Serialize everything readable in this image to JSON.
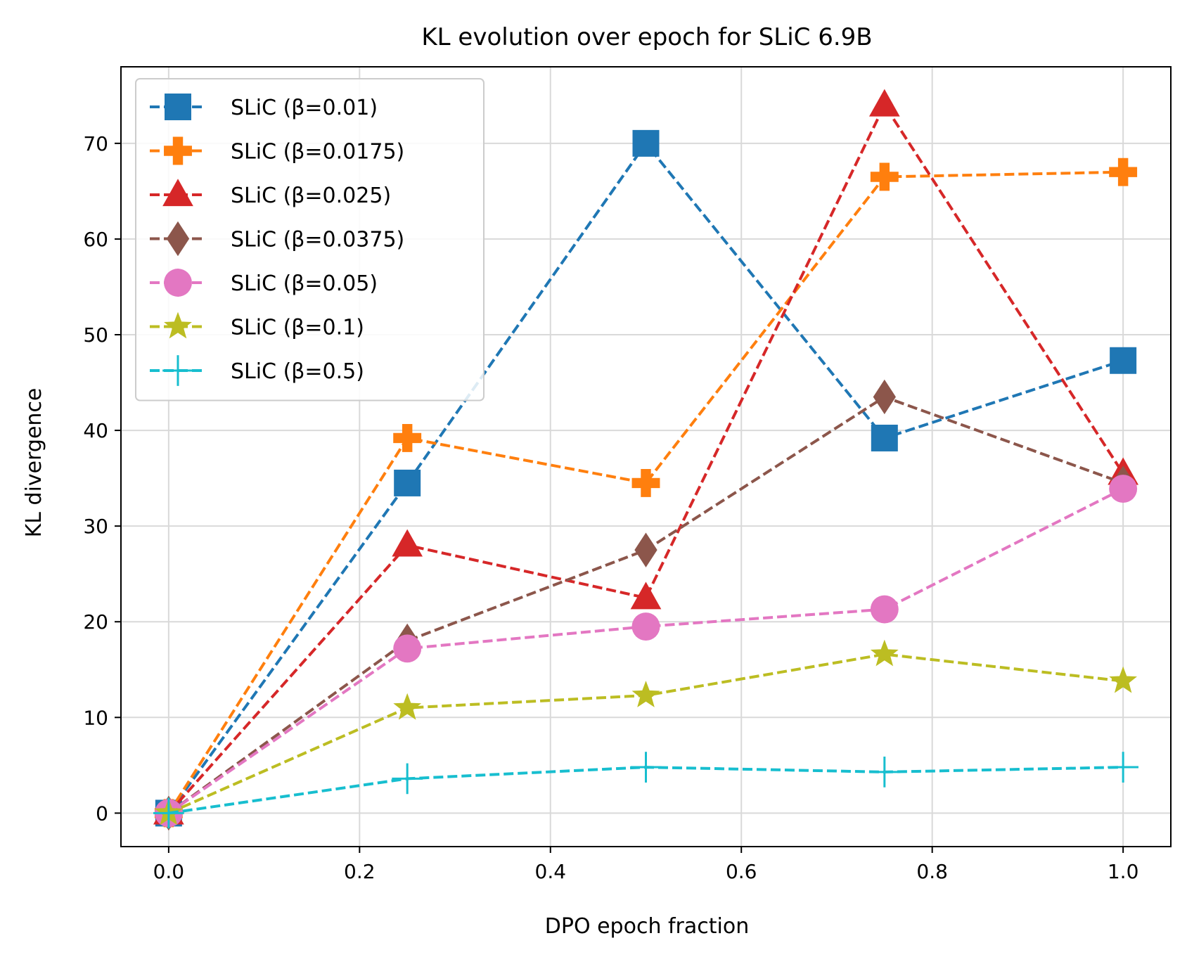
{
  "chart_data": {
    "type": "line",
    "title": "KL evolution over epoch for SLiC 6.9B",
    "xlabel": "DPO epoch fraction",
    "ylabel": "KL divergence",
    "xlim": [
      -0.05,
      1.05
    ],
    "ylim": [
      -3.5,
      78
    ],
    "xticks": [
      0.0,
      0.2,
      0.4,
      0.6,
      0.8,
      1.0
    ],
    "xtick_labels": [
      "0.0",
      "0.2",
      "0.4",
      "0.6",
      "0.8",
      "1.0"
    ],
    "yticks": [
      0,
      10,
      20,
      30,
      40,
      50,
      60,
      70
    ],
    "ytick_labels": [
      "0",
      "10",
      "20",
      "30",
      "40",
      "50",
      "60",
      "70"
    ],
    "grid": true,
    "legend_position": "top-left",
    "x": [
      0.0,
      0.25,
      0.5,
      0.75,
      1.0
    ],
    "series": [
      {
        "name": "SLiC (β=0.01)",
        "color": "#1f77b4",
        "marker": "square",
        "values": [
          0,
          34.5,
          70,
          39.2,
          47.3
        ]
      },
      {
        "name": "SLiC (β=0.0175)",
        "color": "#ff7f0e",
        "marker": "plus-filled",
        "values": [
          0,
          39.2,
          34.5,
          66.5,
          67
        ]
      },
      {
        "name": "SLiC (β=0.025)",
        "color": "#d62728",
        "marker": "triangle",
        "values": [
          0,
          28,
          22.5,
          74,
          35.5
        ]
      },
      {
        "name": "SLiC (β=0.0375)",
        "color": "#8c564b",
        "marker": "diamond",
        "values": [
          0,
          18,
          27.5,
          43.5,
          34.5
        ]
      },
      {
        "name": "SLiC (β=0.05)",
        "color": "#e377c2",
        "marker": "circle",
        "values": [
          0,
          17.2,
          19.5,
          21.3,
          33.9
        ]
      },
      {
        "name": "SLiC (β=0.1)",
        "color": "#bcbd22",
        "marker": "star",
        "values": [
          0,
          11,
          12.3,
          16.6,
          13.8
        ]
      },
      {
        "name": "SLiC (β=0.5)",
        "color": "#17becf",
        "marker": "plus",
        "values": [
          0,
          3.6,
          4.8,
          4.3,
          4.8
        ]
      }
    ]
  }
}
